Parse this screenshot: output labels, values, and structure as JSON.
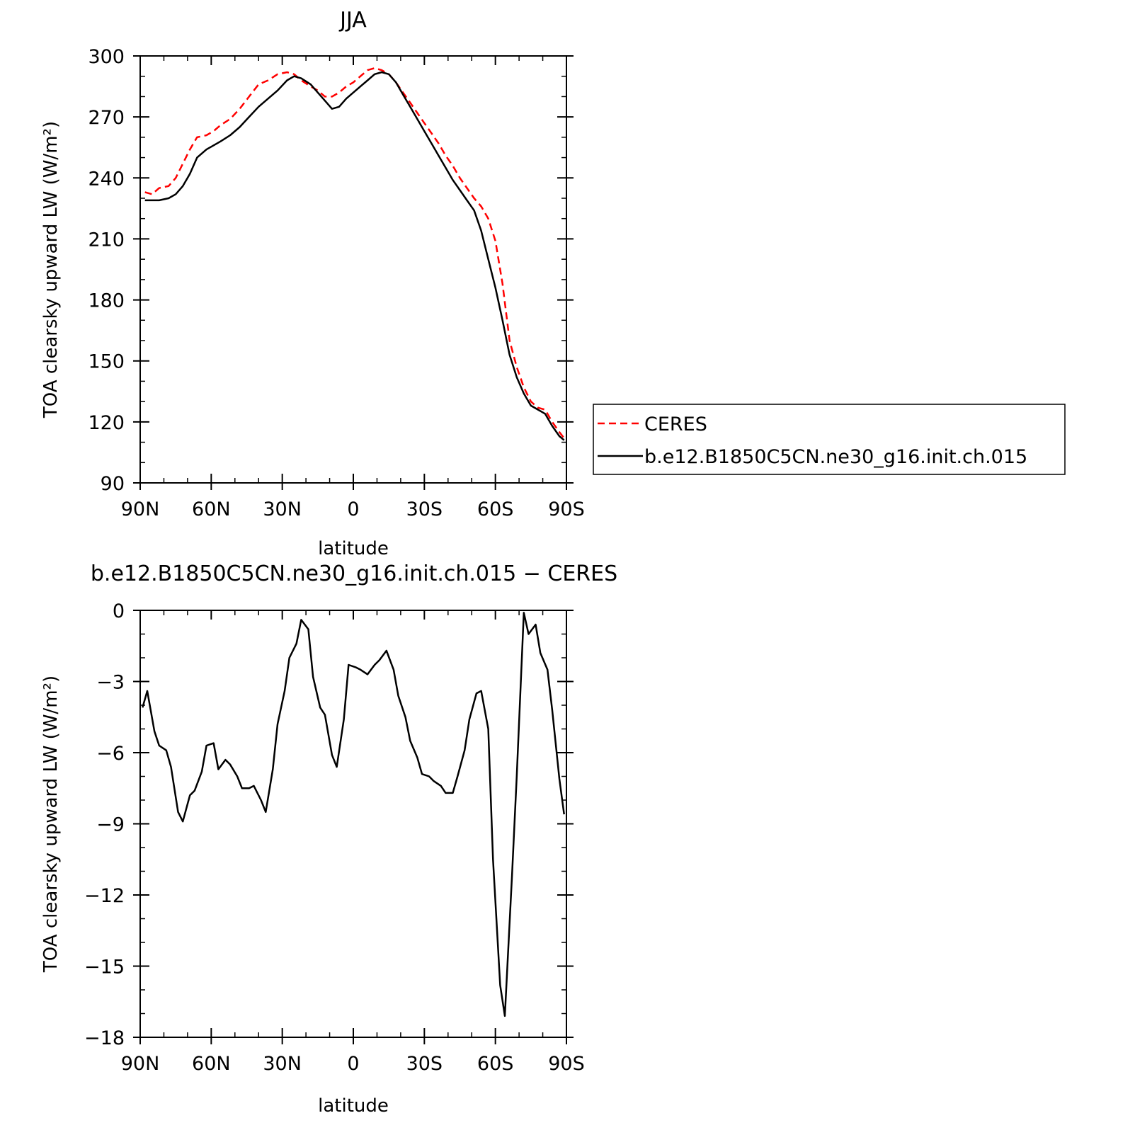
{
  "chart_data": [
    {
      "type": "line",
      "title": "JJA",
      "xlabel": "latitude",
      "ylabel": "TOA clearsky upward LW (W/m²)",
      "xlim": [
        90,
        -90
      ],
      "ylim": [
        90,
        300
      ],
      "xticks": [
        90,
        60,
        30,
        0,
        -30,
        -60,
        -90
      ],
      "xtick_labels": [
        "90N",
        "60N",
        "30N",
        "0",
        "30S",
        "60S",
        "90S"
      ],
      "yticks": [
        90,
        120,
        150,
        180,
        210,
        240,
        270,
        300
      ],
      "ytick_labels": [
        "90",
        "120",
        "150",
        "180",
        "210",
        "240",
        "270",
        "300"
      ],
      "grid": false,
      "legend_position": "right",
      "series": [
        {
          "name": "CERES",
          "color": "#ff0000",
          "dash": "dashed",
          "x": [
            88,
            85,
            82,
            78,
            75,
            72,
            69,
            66,
            62,
            59,
            56,
            52,
            48,
            44,
            40,
            36,
            32,
            28,
            25,
            22,
            18,
            15,
            12,
            9,
            6,
            3,
            0,
            -3,
            -6,
            -9,
            -12,
            -15,
            -18,
            -21,
            -24,
            -27,
            -30,
            -33,
            -36,
            -39,
            -42,
            -45,
            -48,
            -51,
            -54,
            -57,
            -60,
            -63,
            -66,
            -69,
            -72,
            -75,
            -78,
            -81,
            -84,
            -87,
            -89
          ],
          "y": [
            233,
            232,
            235,
            236,
            240,
            247,
            254,
            260,
            261,
            263,
            266,
            269,
            274,
            280,
            286,
            288,
            291,
            292,
            291,
            288,
            285,
            283,
            280,
            280,
            282,
            285,
            287,
            290,
            293,
            294,
            293,
            291,
            287,
            282,
            277,
            272,
            267,
            262,
            257,
            251,
            246,
            240,
            235,
            230,
            226,
            220,
            209,
            188,
            160,
            147,
            137,
            130,
            127,
            126,
            120,
            115,
            112
          ]
        },
        {
          "name": "b.e12.B1850C5CN.ne30_g16.init.ch.015",
          "color": "#000000",
          "dash": "solid",
          "x": [
            88,
            85,
            82,
            78,
            75,
            72,
            69,
            66,
            62,
            59,
            56,
            52,
            48,
            44,
            40,
            36,
            32,
            28,
            25,
            22,
            18,
            15,
            12,
            9,
            6,
            3,
            0,
            -3,
            -6,
            -9,
            -12,
            -15,
            -18,
            -21,
            -24,
            -27,
            -30,
            -33,
            -36,
            -39,
            -42,
            -45,
            -48,
            -51,
            -54,
            -57,
            -60,
            -63,
            -66,
            -69,
            -72,
            -75,
            -78,
            -81,
            -84,
            -87,
            -89
          ],
          "y": [
            229,
            229,
            229,
            230,
            232,
            236,
            242,
            250,
            254,
            256,
            258,
            261,
            265,
            270,
            275,
            279,
            283,
            288,
            290,
            289,
            286,
            282,
            278,
            274,
            275,
            279,
            282,
            285,
            288,
            291,
            292,
            291,
            287,
            281,
            275,
            269,
            263,
            257,
            251,
            245,
            239,
            234,
            229,
            224,
            214,
            200,
            186,
            170,
            153,
            142,
            134,
            128,
            126,
            124,
            118,
            113,
            111
          ]
        }
      ]
    },
    {
      "type": "line",
      "title": "b.e12.B1850C5CN.ne30_g16.init.ch.015 − CERES",
      "xlabel": "latitude",
      "ylabel": "TOA clearsky upward LW (W/m²)",
      "xlim": [
        90,
        -90
      ],
      "ylim": [
        -18,
        0
      ],
      "xticks": [
        90,
        60,
        30,
        0,
        -30,
        -60,
        -90
      ],
      "xtick_labels": [
        "90N",
        "60N",
        "30N",
        "0",
        "30S",
        "60S",
        "90S"
      ],
      "yticks": [
        0,
        -3,
        -6,
        -9,
        -12,
        -15,
        -18
      ],
      "ytick_labels": [
        "0",
        "−3",
        "−6",
        "−9",
        "−12",
        "−15",
        "−18"
      ],
      "grid": false,
      "series": [
        {
          "color": "#000000",
          "dash": "solid",
          "x": [
            89,
            87,
            84,
            82,
            79,
            77,
            74,
            72,
            69,
            67,
            64,
            62,
            59,
            57,
            54,
            52,
            49,
            47,
            44,
            42,
            39,
            37,
            34,
            32,
            29,
            27,
            24,
            22,
            19,
            17,
            14,
            12,
            9,
            7,
            4,
            2,
            -1,
            -3,
            -6,
            -9,
            -11,
            -14,
            -17,
            -19,
            -22,
            -24,
            -27,
            -29,
            -32,
            -34,
            -37,
            -39,
            -42,
            -44,
            -47,
            -49,
            -52,
            -54,
            -57,
            -59,
            -62,
            -64,
            -67,
            -69,
            -72,
            -74,
            -77,
            -79,
            -82,
            -84,
            -87,
            -89
          ],
          "y": [
            -4.1,
            -3.4,
            -5.1,
            -5.7,
            -5.9,
            -6.6,
            -8.5,
            -8.9,
            -7.8,
            -7.6,
            -6.8,
            -5.7,
            -5.6,
            -6.7,
            -6.3,
            -6.5,
            -7.0,
            -7.5,
            -7.5,
            -7.4,
            -8.0,
            -8.5,
            -6.7,
            -4.8,
            -3.4,
            -2.0,
            -1.4,
            -0.4,
            -0.8,
            -2.8,
            -4.1,
            -4.4,
            -6.1,
            -6.6,
            -4.6,
            -2.3,
            -2.4,
            -2.5,
            -2.7,
            -2.3,
            -2.1,
            -1.7,
            -2.5,
            -3.6,
            -4.5,
            -5.5,
            -6.2,
            -6.9,
            -7.0,
            -7.2,
            -7.4,
            -7.7,
            -7.7,
            -7.0,
            -5.9,
            -4.6,
            -3.5,
            -3.4,
            -5.0,
            -10.5,
            -15.8,
            -17.1,
            -11.2,
            -7.0,
            -0.1,
            -1.0,
            -0.6,
            -1.8,
            -2.5,
            -4.2,
            -7.1,
            -8.6
          ]
        }
      ]
    }
  ]
}
